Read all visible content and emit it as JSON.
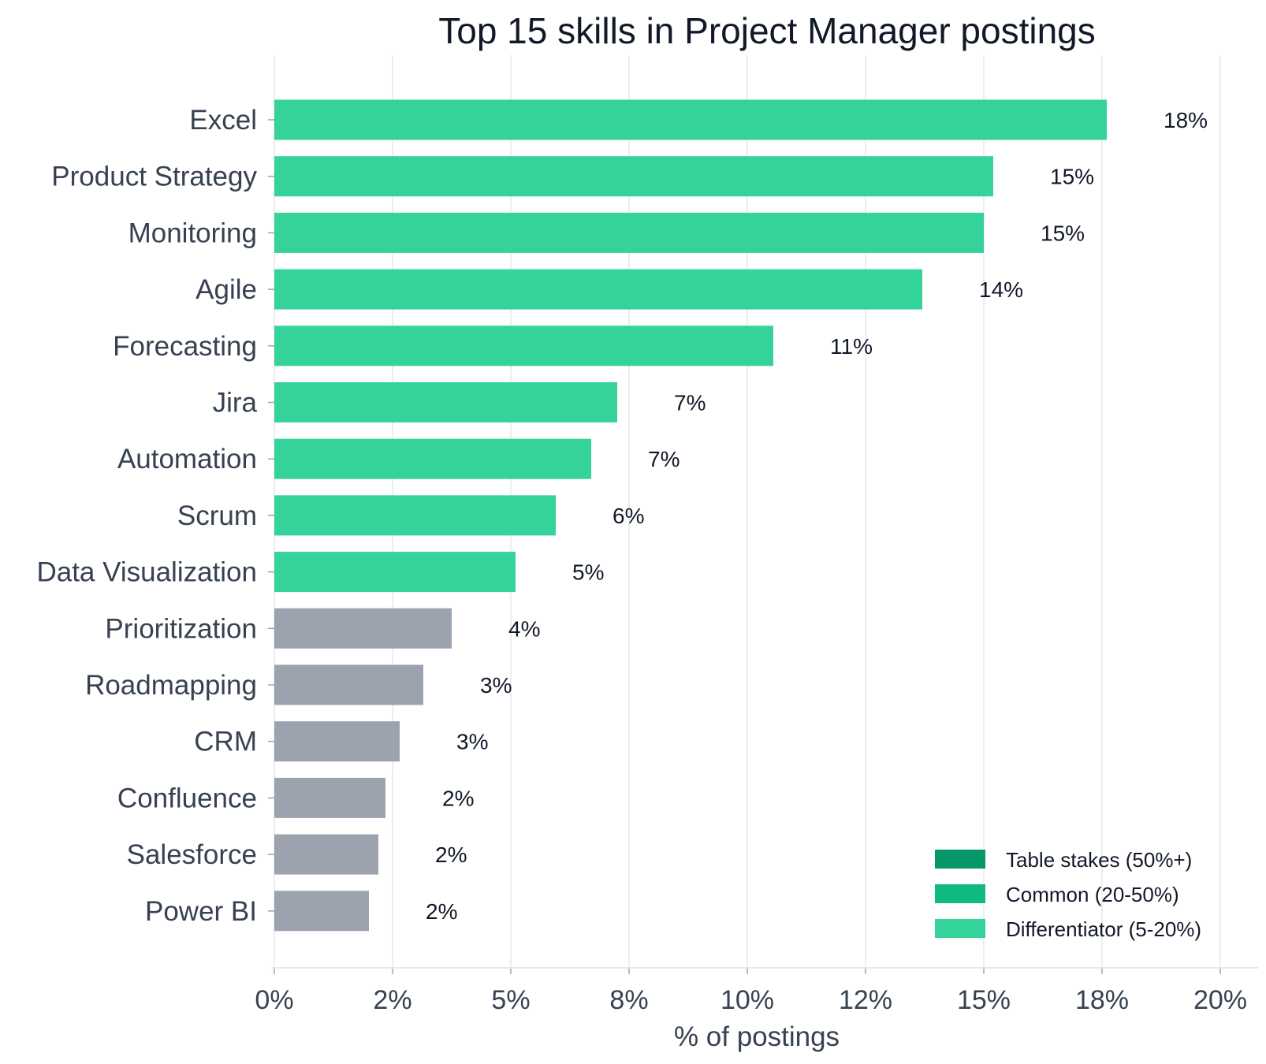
{
  "chart_data": {
    "type": "bar",
    "orientation": "horizontal",
    "title": "Top 15 skills in Project Manager postings",
    "xlabel": "% of postings",
    "ylabel": "",
    "xlim": [
      0,
      20.8
    ],
    "grid": "vertical",
    "categories": [
      "Excel",
      "Product Strategy",
      "Monitoring",
      "Agile",
      "Forecasting",
      "Jira",
      "Automation",
      "Scrum",
      "Data Visualization",
      "Prioritization",
      "Roadmapping",
      "CRM",
      "Confluence",
      "Salesforce",
      "Power BI"
    ],
    "values": [
      17.6,
      15.2,
      15.0,
      13.7,
      10.55,
      7.25,
      6.7,
      5.95,
      5.1,
      3.75,
      3.15,
      2.65,
      2.35,
      2.2,
      2.0
    ],
    "value_labels": [
      "18%",
      "15%",
      "15%",
      "14%",
      "11%",
      "7%",
      "7%",
      "6%",
      "5%",
      "4%",
      "3%",
      "3%",
      "2%",
      "2%",
      "2%"
    ],
    "tiers": [
      "Differentiator (5-20%)",
      "Differentiator (5-20%)",
      "Differentiator (5-20%)",
      "Differentiator (5-20%)",
      "Differentiator (5-20%)",
      "Differentiator (5-20%)",
      "Differentiator (5-20%)",
      "Differentiator (5-20%)",
      "Differentiator (5-20%)",
      "other",
      "other",
      "other",
      "other",
      "other",
      "other"
    ],
    "x_ticks": [
      0,
      2.5,
      5,
      7.5,
      10,
      12.5,
      15,
      17.5,
      20
    ],
    "x_tick_labels": [
      "0%",
      "2%",
      "5%",
      "8%",
      "10%",
      "12%",
      "15%",
      "18%",
      "20%"
    ],
    "legend": {
      "position": "bottom-right",
      "entries": [
        {
          "label": "Table stakes (50%+)",
          "color": "#059669"
        },
        {
          "label": "Common (20-50%)",
          "color": "#10b981"
        },
        {
          "label": "Differentiator (5-20%)",
          "color": "#34d399"
        }
      ]
    },
    "colors": {
      "differentiator": "#34d399",
      "other": "#9ca3af",
      "grid": "#e5e7eb",
      "axis": "#e5e7eb"
    }
  }
}
